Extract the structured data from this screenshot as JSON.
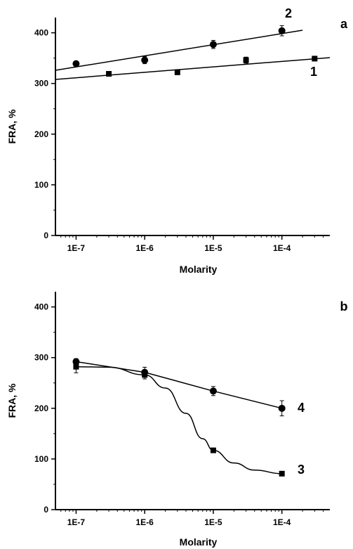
{
  "chart_data": [
    {
      "type": "scatter",
      "panel_label": "a",
      "xlabel": "Molarity",
      "ylabel": "FRA, %",
      "xscale": "log",
      "xlim": [
        5e-08,
        0.0005
      ],
      "ylim": [
        0,
        430
      ],
      "x_ticks": [
        1e-07,
        1e-06,
        1e-05,
        0.0001
      ],
      "x_tick_labels": [
        "1E-7",
        "1E-6",
        "1E-5",
        "1E-4"
      ],
      "y_ticks": [
        0,
        100,
        200,
        300,
        400
      ],
      "y_tick_labels": [
        "0",
        "100",
        "200",
        "300",
        "400"
      ],
      "series": [
        {
          "name": "1",
          "marker": "square",
          "x": [
            3e-07,
            3e-06,
            3e-05,
            0.0003
          ],
          "values": [
            319,
            322,
            346,
            349
          ],
          "errors": [
            3,
            3,
            6,
            3
          ],
          "fit": "linear",
          "fit_range": [
            5e-08,
            0.0005
          ],
          "fit_values": [
            308,
            351
          ]
        },
        {
          "name": "2",
          "marker": "circle",
          "x": [
            1e-07,
            1e-06,
            1e-05,
            0.0001
          ],
          "values": [
            339,
            346,
            377,
            404
          ],
          "errors": [
            5,
            7,
            8,
            10
          ],
          "fit": "linear",
          "fit_range": [
            5e-08,
            0.0002
          ],
          "fit_values": [
            326,
            405
          ]
        }
      ]
    },
    {
      "type": "line",
      "panel_label": "b",
      "xlabel": "Molarity",
      "ylabel": "FRA, %",
      "xscale": "log",
      "xlim": [
        5e-08,
        0.0005
      ],
      "ylim": [
        0,
        430
      ],
      "x_ticks": [
        1e-07,
        1e-06,
        1e-05,
        0.0001
      ],
      "x_tick_labels": [
        "1E-7",
        "1E-6",
        "1E-5",
        "1E-4"
      ],
      "y_ticks": [
        0,
        100,
        200,
        300,
        400
      ],
      "y_tick_labels": [
        "0",
        "100",
        "200",
        "300",
        "400"
      ],
      "series": [
        {
          "name": "3",
          "marker": "square",
          "x": [
            1e-07,
            1e-06,
            1e-05,
            0.0001
          ],
          "values": [
            282,
            266,
            117,
            71
          ],
          "errors": [
            12,
            8,
            4,
            3
          ],
          "fit": "sigmoid",
          "fit_points": [
            [
              1e-07,
              282
            ],
            [
              3e-07,
              281
            ],
            [
              1e-06,
              266
            ],
            [
              2e-06,
              240
            ],
            [
              4e-06,
              190
            ],
            [
              7e-06,
              140
            ],
            [
              1e-05,
              117
            ],
            [
              2e-05,
              92
            ],
            [
              4e-05,
              78
            ],
            [
              0.0001,
              71
            ]
          ]
        },
        {
          "name": "4",
          "marker": "circle",
          "x": [
            1e-07,
            1e-06,
            1e-05,
            0.0001
          ],
          "values": [
            292,
            271,
            234,
            200
          ],
          "errors": [
            6,
            10,
            9,
            15
          ],
          "fit": "smooth"
        }
      ]
    }
  ]
}
